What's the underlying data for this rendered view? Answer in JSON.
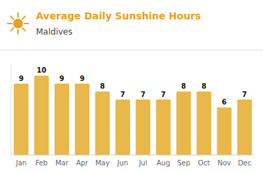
{
  "chart_data": {
    "type": "bar",
    "title": "Average Daily Sunshine Hours",
    "subtitle": "Maldives",
    "categories": [
      "Jan",
      "Feb",
      "Mar",
      "Apr",
      "May",
      "Jun",
      "Jul",
      "Aug",
      "Sep",
      "Oct",
      "Nov",
      "Dec"
    ],
    "values": [
      9,
      10,
      9,
      9,
      8,
      7,
      7,
      7,
      8,
      8,
      6,
      7
    ],
    "color": "#E8B84B",
    "ylim": [
      0,
      11.5
    ],
    "data_labels": true,
    "tick_labels": "x",
    "grid": false
  }
}
